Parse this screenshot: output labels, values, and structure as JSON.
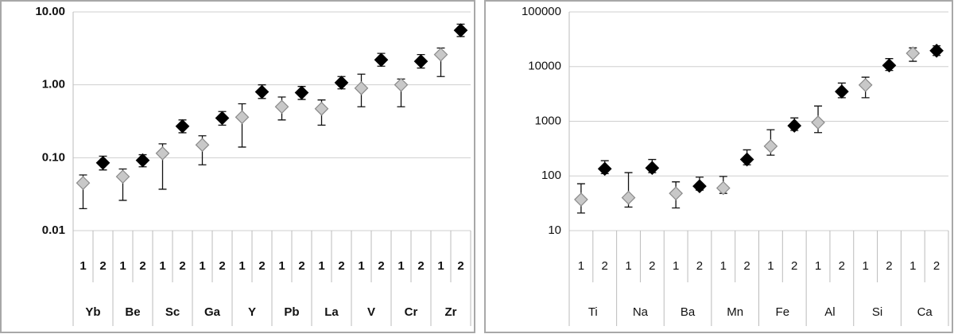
{
  "chart_data": [
    {
      "type": "errorbar",
      "log_y": true,
      "grid": true,
      "ylim": [
        0.01,
        10
      ],
      "yticks": [
        {
          "value": 0.01,
          "label": "0.01"
        },
        {
          "value": 0.1,
          "label": "0.10"
        },
        {
          "value": 1,
          "label": "1.00"
        },
        {
          "value": 10,
          "label": "10.00"
        }
      ],
      "categories": [
        "Yb",
        "Be",
        "Sc",
        "Ga",
        "Y",
        "Pb",
        "La",
        "V",
        "Cr",
        "Zr"
      ],
      "series": [
        {
          "name": "1",
          "color": "#c8c8c8",
          "values": [
            0.045,
            0.055,
            0.115,
            0.15,
            0.36,
            0.5,
            0.47,
            0.9,
            1.0,
            2.6
          ],
          "lower": [
            0.02,
            0.026,
            0.037,
            0.08,
            0.14,
            0.33,
            0.28,
            0.5,
            0.5,
            1.3
          ],
          "upper": [
            0.058,
            0.07,
            0.155,
            0.2,
            0.55,
            0.68,
            0.62,
            1.4,
            1.2,
            3.2
          ]
        },
        {
          "name": "2",
          "color": "#000000",
          "values": [
            0.085,
            0.092,
            0.27,
            0.35,
            0.8,
            0.78,
            1.07,
            2.2,
            2.1,
            5.6
          ],
          "lower": [
            0.068,
            0.075,
            0.22,
            0.28,
            0.65,
            0.63,
            0.88,
            1.8,
            1.7,
            4.6
          ],
          "upper": [
            0.105,
            0.11,
            0.33,
            0.43,
            1.0,
            0.95,
            1.3,
            2.7,
            2.6,
            6.8
          ]
        }
      ]
    },
    {
      "type": "errorbar",
      "log_y": true,
      "grid": true,
      "ylim": [
        10,
        100000
      ],
      "yticks": [
        10,
        100,
        1000,
        10000,
        100000
      ],
      "categories": [
        "Ti",
        "Na",
        "Ba",
        "Mn",
        "Fe",
        "Al",
        "Si",
        "Ca"
      ],
      "series": [
        {
          "name": "1",
          "color": "#c8c8c8",
          "values": [
            37,
            40,
            48,
            60,
            350,
            950,
            4600,
            17500
          ],
          "lower": [
            21,
            27,
            26,
            48,
            240,
            620,
            2700,
            12500
          ],
          "upper": [
            72,
            115,
            78,
            98,
            700,
            1900,
            6400,
            22000
          ]
        },
        {
          "name": "2",
          "color": "#000000",
          "values": [
            135,
            140,
            65,
            200,
            830,
            3500,
            10500,
            19500
          ],
          "lower": [
            110,
            115,
            55,
            160,
            680,
            2700,
            8500,
            16000
          ],
          "upper": [
            190,
            200,
            95,
            300,
            1150,
            5000,
            14000,
            24000
          ]
        }
      ]
    }
  ]
}
